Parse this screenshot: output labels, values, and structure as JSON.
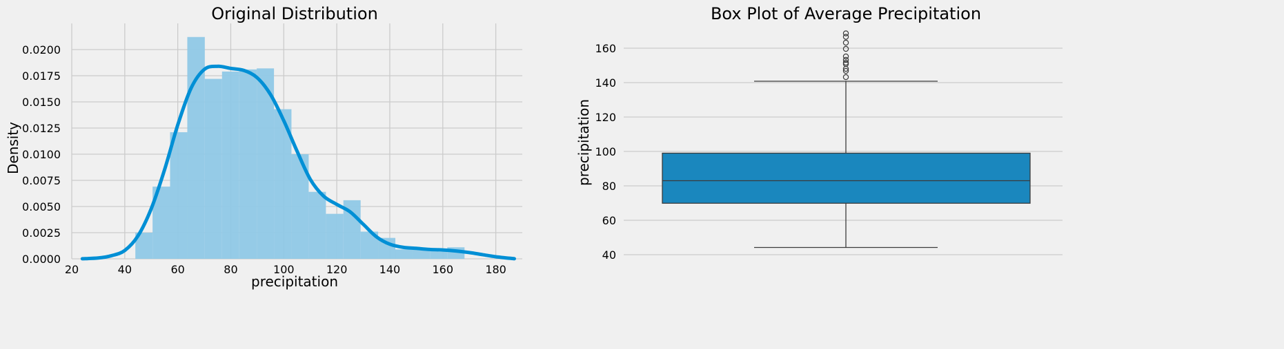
{
  "colors": {
    "background": "#f0f0f0",
    "grid": "#cbcbcb",
    "hist_fill": "#8fc8e6",
    "kde_line": "#008fd5",
    "box_fill": "#1a87be",
    "box_line": "#3b3b3b"
  },
  "chart_data": [
    {
      "type": "bar",
      "title": "Original Distribution",
      "xlabel": "precipitation",
      "ylabel": "Density",
      "xlim": [
        20,
        190
      ],
      "ylim": [
        0,
        0.0225
      ],
      "x_ticks": [
        "20",
        "40",
        "60",
        "80",
        "100",
        "120",
        "140",
        "160",
        "180"
      ],
      "y_ticks": [
        "0.0000",
        "0.0025",
        "0.0050",
        "0.0075",
        "0.0100",
        "0.0125",
        "0.0150",
        "0.0175",
        "0.0200"
      ],
      "grid": true,
      "bins": [
        {
          "x0": 44.0,
          "x1": 50.5,
          "value": 0.0025
        },
        {
          "x0": 50.5,
          "x1": 57.1,
          "value": 0.0069
        },
        {
          "x0": 57.1,
          "x1": 63.6,
          "value": 0.0121
        },
        {
          "x0": 63.6,
          "x1": 70.2,
          "value": 0.0212
        },
        {
          "x0": 70.2,
          "x1": 76.7,
          "value": 0.0172
        },
        {
          "x0": 76.7,
          "x1": 83.2,
          "value": 0.0179
        },
        {
          "x0": 83.2,
          "x1": 89.8,
          "value": 0.0181
        },
        {
          "x0": 89.8,
          "x1": 96.3,
          "value": 0.0182
        },
        {
          "x0": 96.3,
          "x1": 102.9,
          "value": 0.0143
        },
        {
          "x0": 102.9,
          "x1": 109.4,
          "value": 0.01
        },
        {
          "x0": 109.4,
          "x1": 115.9,
          "value": 0.0064
        },
        {
          "x0": 115.9,
          "x1": 122.5,
          "value": 0.0043
        },
        {
          "x0": 122.5,
          "x1": 129.0,
          "value": 0.0056
        },
        {
          "x0": 129.0,
          "x1": 135.6,
          "value": 0.0026
        },
        {
          "x0": 135.6,
          "x1": 142.1,
          "value": 0.002
        },
        {
          "x0": 142.1,
          "x1": 148.6,
          "value": 0.0009
        },
        {
          "x0": 148.6,
          "x1": 155.2,
          "value": 0.0009
        },
        {
          "x0": 155.2,
          "x1": 161.7,
          "value": 0.0009
        },
        {
          "x0": 161.7,
          "x1": 168.2,
          "value": 0.0011
        }
      ],
      "kde": {
        "x": [
          24,
          30,
          35,
          40,
          45,
          50,
          55,
          60,
          65,
          70,
          75,
          80,
          85,
          90,
          95,
          100,
          105,
          110,
          115,
          120,
          125,
          130,
          135,
          140,
          145,
          150,
          155,
          160,
          165,
          170,
          175,
          180,
          187
        ],
        "y": [
          1e-05,
          8e-05,
          0.0003,
          0.0008,
          0.0022,
          0.0048,
          0.0085,
          0.0128,
          0.0163,
          0.0181,
          0.0184,
          0.0182,
          0.018,
          0.0173,
          0.0157,
          0.0132,
          0.0103,
          0.0076,
          0.006,
          0.0052,
          0.0045,
          0.0033,
          0.0021,
          0.0014,
          0.0011,
          0.001,
          0.0009,
          0.00085,
          0.00075,
          0.0006,
          0.0004,
          0.0002,
          1e-05
        ]
      }
    },
    {
      "type": "box",
      "title": "Box Plot of Average Precipitation",
      "xlabel": "",
      "ylabel": "precipitation",
      "ylim": [
        37,
        172
      ],
      "y_ticks": [
        "40",
        "60",
        "80",
        "100",
        "120",
        "140",
        "160"
      ],
      "grid": true,
      "box": {
        "whisker_low": 44.2,
        "q1": 69.9,
        "median": 83.0,
        "q3": 99.0,
        "whisker_high": 140.8
      },
      "outliers": [
        143.2,
        146.8,
        148.0,
        150.8,
        151.6,
        153.2,
        155.2,
        159.6,
        163.2,
        166.6,
        168.6
      ]
    }
  ]
}
